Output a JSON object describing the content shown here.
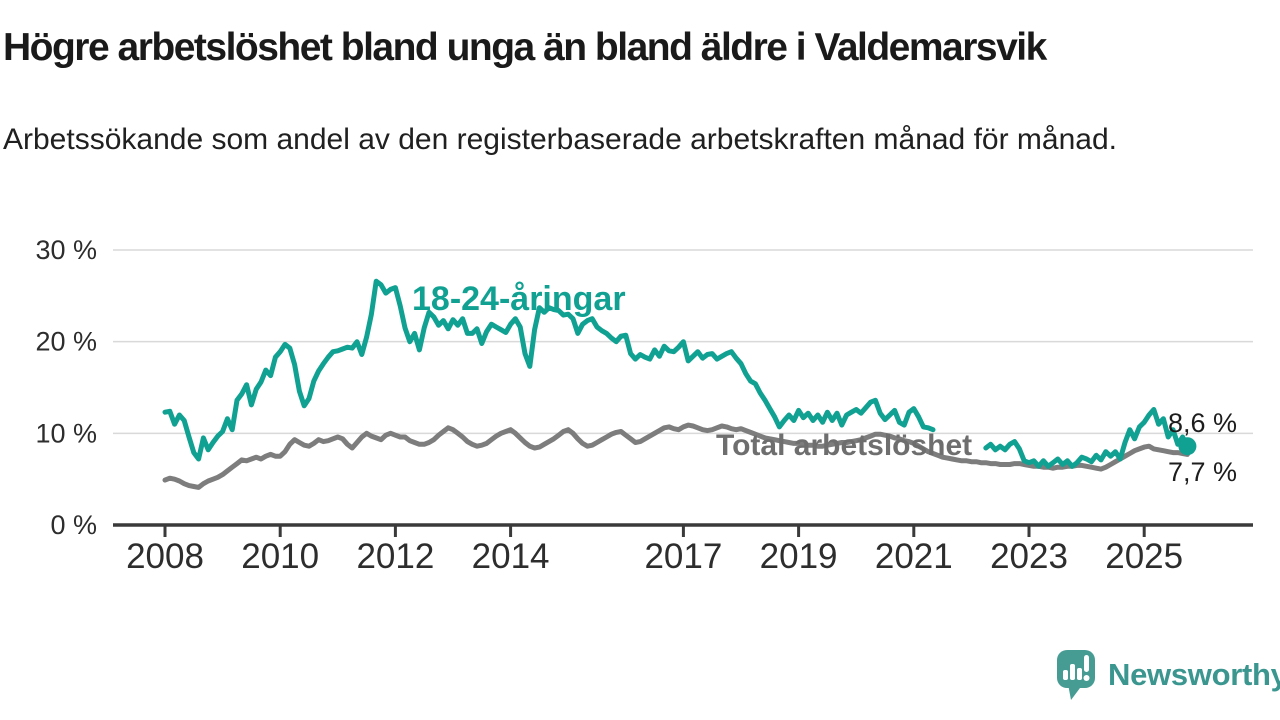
{
  "header": {
    "title": "Högre arbetslöshet bland unga än bland äldre i Valdemarsvik",
    "subtitle": "Arbetssökande som andel av den registerbaserade arbetskraften månad för månad."
  },
  "chart_data": {
    "type": "line",
    "title": "Högre arbetslöshet bland unga än bland äldre i Valdemarsvik",
    "subtitle": "Arbetssökande som andel av den registerbaserade arbetskraften månad för månad.",
    "frequency": "monthly",
    "x_start_year": 2008,
    "x_start_month": 1,
    "x_end_year": 2025,
    "x_end_month": 10,
    "ylim": [
      0,
      30
    ],
    "grid": "horizontal-only",
    "legend_position": "inline-labels",
    "xticks": [
      2008,
      2010,
      2012,
      2014,
      2017,
      2019,
      2021,
      2023,
      2025
    ],
    "yticks": [
      {
        "value": 0,
        "label": "0 %"
      },
      {
        "value": 10,
        "label": "10 %"
      },
      {
        "value": 20,
        "label": "20 %"
      },
      {
        "value": 30,
        "label": "30 %"
      }
    ],
    "series": [
      {
        "name": "18-24-åringar",
        "color": "#11a192",
        "end_label": "8,6 %",
        "end_value": 8.6,
        "values": [
          12.3,
          12.4,
          11.0,
          12.0,
          11.4,
          9.6,
          7.9,
          7.2,
          9.5,
          8.2,
          9.0,
          9.7,
          10.2,
          11.6,
          10.4,
          13.6,
          14.3,
          15.3,
          13.1,
          14.8,
          15.6,
          16.9,
          16.3,
          18.3,
          18.9,
          19.7,
          19.3,
          17.5,
          14.6,
          13.0,
          13.8,
          15.7,
          16.8,
          17.6,
          18.3,
          18.9,
          19.0,
          19.2,
          19.4,
          19.3,
          20.0,
          18.6,
          20.5,
          23.0,
          26.6,
          26.2,
          25.3,
          25.7,
          25.9,
          23.9,
          21.5,
          20.0,
          20.9,
          19.1,
          21.5,
          23.2,
          22.7,
          21.8,
          22.3,
          21.4,
          22.4,
          21.8,
          22.5,
          20.9,
          20.9,
          21.4,
          19.8,
          21.1,
          21.9,
          21.6,
          21.3,
          21.0,
          21.9,
          22.5,
          21.6,
          18.7,
          17.3,
          21.3,
          23.7,
          23.2,
          23.7,
          23.5,
          23.4,
          22.9,
          23.0,
          22.5,
          20.9,
          21.9,
          22.3,
          22.5,
          21.6,
          21.2,
          20.9,
          20.4,
          20.0,
          20.6,
          20.7,
          18.7,
          18.1,
          18.6,
          18.3,
          18.1,
          19.1,
          18.4,
          19.5,
          19.0,
          18.9,
          19.4,
          20.0,
          17.9,
          18.4,
          18.9,
          18.2,
          18.6,
          18.7,
          18.1,
          18.4,
          18.7,
          18.9,
          18.2,
          17.6,
          16.5,
          15.7,
          15.4,
          14.4,
          13.6,
          12.7,
          11.8,
          10.7,
          11.4,
          12.0,
          11.4,
          12.5,
          11.7,
          12.2,
          11.4,
          12.0,
          11.2,
          12.3,
          11.4,
          12.2,
          10.9,
          12.0,
          12.3,
          12.6,
          12.2,
          12.8,
          13.4,
          13.6,
          12.2,
          11.5,
          12.0,
          12.5,
          11.2,
          10.9,
          12.3,
          12.7,
          11.8,
          10.7,
          10.6,
          10.4,
          null,
          null,
          null,
          null,
          null,
          null,
          null,
          null,
          null,
          null,
          8.4,
          8.8,
          8.2,
          8.6,
          8.2,
          8.8,
          9.1,
          8.3,
          7.0,
          6.8,
          7.0,
          6.4,
          7.0,
          6.4,
          6.8,
          7.2,
          6.6,
          7.0,
          6.4,
          6.8,
          7.4,
          7.2,
          6.9,
          7.6,
          7.1,
          8.0,
          7.5,
          8.0,
          7.2,
          9.0,
          10.4,
          9.4,
          10.7,
          11.2,
          12.0,
          12.6,
          11.0,
          11.6,
          9.6,
          10.4,
          8.8,
          9.6,
          8.6
        ]
      },
      {
        "name": "Total arbetslöshet",
        "color": "#7d7d7d",
        "label_color": "#6e6e6e",
        "end_label": "7,7 %",
        "end_value": 7.7,
        "values": [
          4.9,
          5.1,
          5.0,
          4.8,
          4.5,
          4.3,
          4.2,
          4.1,
          4.5,
          4.8,
          5.0,
          5.2,
          5.5,
          5.9,
          6.3,
          6.7,
          7.1,
          7.0,
          7.2,
          7.4,
          7.2,
          7.5,
          7.7,
          7.5,
          7.5,
          8.0,
          8.8,
          9.3,
          9.0,
          8.7,
          8.6,
          8.9,
          9.3,
          9.1,
          9.2,
          9.4,
          9.6,
          9.4,
          8.8,
          8.4,
          9.0,
          9.6,
          10.0,
          9.7,
          9.5,
          9.3,
          9.8,
          10.0,
          9.8,
          9.6,
          9.6,
          9.2,
          9.0,
          8.8,
          8.8,
          9.0,
          9.3,
          9.8,
          10.2,
          10.6,
          10.4,
          10.0,
          9.6,
          9.1,
          8.8,
          8.6,
          8.7,
          8.9,
          9.3,
          9.7,
          10.0,
          10.2,
          10.4,
          10.0,
          9.5,
          9.0,
          8.6,
          8.4,
          8.5,
          8.8,
          9.1,
          9.4,
          9.8,
          10.2,
          10.4,
          10.0,
          9.4,
          8.9,
          8.6,
          8.7,
          9.0,
          9.3,
          9.6,
          9.9,
          10.1,
          10.2,
          9.8,
          9.4,
          9.0,
          9.1,
          9.4,
          9.7,
          10.0,
          10.3,
          10.6,
          10.7,
          10.5,
          10.4,
          10.7,
          10.9,
          10.8,
          10.6,
          10.4,
          10.3,
          10.4,
          10.6,
          10.8,
          10.7,
          10.5,
          10.4,
          10.5,
          10.3,
          10.1,
          9.9,
          9.7,
          9.5,
          9.4,
          9.3,
          9.2,
          9.1,
          9.0,
          8.9,
          8.9,
          8.8,
          8.7,
          8.7,
          8.6,
          8.6,
          8.7,
          8.8,
          8.9,
          9.0,
          9.0,
          9.1,
          9.2,
          9.3,
          9.5,
          9.7,
          9.9,
          9.9,
          9.8,
          9.7,
          9.5,
          9.4,
          9.2,
          9.1,
          8.9,
          8.6,
          8.3,
          8.0,
          7.8,
          7.6,
          7.4,
          7.3,
          7.2,
          7.1,
          7.0,
          7.0,
          6.9,
          6.9,
          6.8,
          6.8,
          6.7,
          6.7,
          6.6,
          6.6,
          6.6,
          6.7,
          6.7,
          6.6,
          6.5,
          6.4,
          6.4,
          6.3,
          6.3,
          6.2,
          6.3,
          6.3,
          6.4,
          6.4,
          6.5,
          6.5,
          6.4,
          6.3,
          6.2,
          6.1,
          6.3,
          6.6,
          6.9,
          7.2,
          7.5,
          7.8,
          8.1,
          8.3,
          8.5,
          8.6,
          8.3,
          8.2,
          8.1,
          8.0,
          7.9,
          7.9,
          7.8,
          7.7
        ]
      }
    ]
  },
  "footer": {
    "brand": "Newsworthy",
    "brand_color": "#469c93",
    "brand_text_color": "#3a968f"
  }
}
